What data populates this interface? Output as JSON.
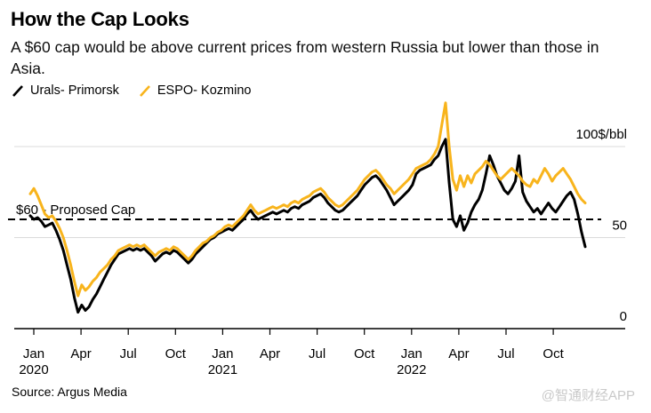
{
  "header": {
    "title": "How the Cap Looks",
    "subtitle": "A $60 cap would be above current prices from western Russia but lower than those in Asia."
  },
  "legend": {
    "items": [
      {
        "label": "Urals- Primorsk",
        "color": "#000000"
      },
      {
        "label": "ESPO- Kozmino",
        "color": "#F8B41C"
      }
    ]
  },
  "footer": {
    "source": "Source: Argus Media",
    "watermark": "@智通财经APP"
  },
  "chart_data": {
    "type": "line",
    "title": "How the Cap Looks",
    "ylabel": "100$/bbl",
    "ylim": [
      0,
      128
    ],
    "grid": true,
    "x_start": "Dec 2019",
    "x_end": "Nov 2022",
    "cadence": "weekly",
    "colors": {
      "grid": "#dbdbdb",
      "axis": "#000000",
      "dashed": "#000000",
      "watermark": "#c9c9c9"
    },
    "y_axis": {
      "ticks": [
        {
          "value": 100,
          "label": "100$/bbl"
        },
        {
          "value": 50,
          "label": "50"
        },
        {
          "value": 0,
          "label": "0"
        }
      ]
    },
    "x_axis": {
      "ticks": [
        {
          "label": "Jan",
          "year": "2020"
        },
        {
          "label": "Apr"
        },
        {
          "label": "Jul"
        },
        {
          "label": "Oct"
        },
        {
          "label": "Jan",
          "year": "2021"
        },
        {
          "label": "Apr"
        },
        {
          "label": "Jul"
        },
        {
          "label": "Oct"
        },
        {
          "label": "Jan",
          "year": "2022"
        },
        {
          "label": "Apr"
        },
        {
          "label": "Jul"
        },
        {
          "label": "Oct"
        }
      ]
    },
    "cap_line": {
      "value": 60,
      "label": "$60 - Proposed Cap",
      "style": "dashed"
    },
    "series": [
      {
        "name": "Urals- Primorsk",
        "color": "#000000",
        "values": [
          62,
          60,
          61,
          59,
          56,
          57,
          58,
          54,
          49,
          43,
          35,
          27,
          17,
          9,
          13,
          10,
          12,
          16,
          19,
          23,
          27,
          31,
          35,
          38,
          41,
          42,
          43,
          44,
          43,
          44,
          43,
          44,
          42,
          40,
          37,
          39,
          41,
          42,
          41,
          43,
          42,
          40,
          38,
          36,
          38,
          41,
          43,
          45,
          47,
          49,
          50,
          52,
          53,
          54,
          55,
          54,
          56,
          58,
          60,
          63,
          65,
          62,
          60,
          61,
          62,
          63,
          64,
          63,
          64,
          65,
          64,
          66,
          67,
          66,
          68,
          69,
          70,
          72,
          73,
          74,
          72,
          69,
          67,
          65,
          64,
          65,
          67,
          69,
          71,
          73,
          76,
          79,
          81,
          83,
          84,
          82,
          79,
          76,
          72,
          68,
          70,
          72,
          74,
          76,
          79,
          85,
          87,
          88,
          89,
          90,
          93,
          95,
          100,
          104,
          80,
          60,
          56,
          62,
          54,
          58,
          64,
          68,
          71,
          76,
          85,
          95,
          90,
          84,
          80,
          76,
          74,
          77,
          81,
          95,
          75,
          70,
          67,
          64,
          66,
          63,
          66,
          69,
          66,
          64,
          67,
          70,
          73,
          75,
          71,
          63,
          53,
          45
        ]
      },
      {
        "name": "ESPO- Kozmino",
        "color": "#F8B41C",
        "values": [
          74,
          77,
          73,
          68,
          63,
          61,
          62,
          59,
          55,
          50,
          43,
          35,
          26,
          18,
          24,
          21,
          23,
          26,
          28,
          31,
          33,
          35,
          38,
          40,
          43,
          44,
          45,
          46,
          45,
          46,
          45,
          46,
          44,
          42,
          40,
          42,
          43,
          44,
          43,
          45,
          44,
          42,
          40,
          38,
          40,
          43,
          45,
          47,
          48,
          50,
          51,
          53,
          54,
          56,
          57,
          56,
          58,
          60,
          62,
          65,
          68,
          65,
          63,
          64,
          65,
          66,
          67,
          66,
          67,
          68,
          67,
          69,
          70,
          69,
          71,
          72,
          73,
          75,
          76,
          77,
          75,
          72,
          70,
          68,
          67,
          68,
          70,
          72,
          74,
          76,
          79,
          82,
          84,
          86,
          87,
          85,
          82,
          79,
          77,
          74,
          76,
          78,
          80,
          82,
          85,
          88,
          89,
          90,
          91,
          93,
          96,
          100,
          112,
          124,
          100,
          82,
          76,
          84,
          78,
          84,
          80,
          85,
          87,
          89,
          92,
          90,
          87,
          84,
          82,
          84,
          86,
          88,
          86,
          84,
          81,
          79,
          78,
          82,
          80,
          84,
          88,
          85,
          81,
          84,
          86,
          88,
          85,
          82,
          78,
          74,
          71,
          69
        ]
      }
    ]
  }
}
